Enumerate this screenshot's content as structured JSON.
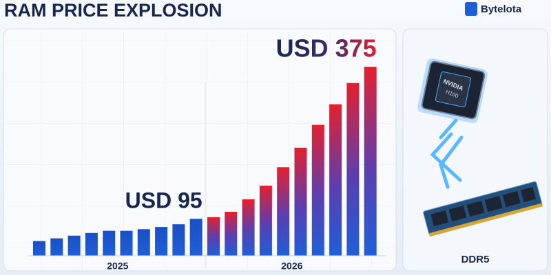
{
  "brand": "Bytelota",
  "chart_data": {
    "type": "bar",
    "title": "RAM PRICE EXPLOSION",
    "categories": [
      null,
      null,
      null,
      null,
      null,
      null,
      null,
      null,
      null,
      null,
      null,
      null,
      null,
      null,
      null,
      null,
      null,
      null,
      null,
      null
    ],
    "values": [
      54,
      59,
      64,
      69,
      73,
      73,
      76,
      80,
      85,
      95,
      98,
      108,
      131,
      156,
      190,
      226,
      268,
      306,
      345,
      375
    ],
    "x_groups": [
      {
        "label": "2025",
        "count": 10
      },
      {
        "label": "2026",
        "count": 10
      }
    ],
    "color": "#1f5fd6",
    "accent_color": "#e3202f",
    "ylim": [
      27,
      422
    ],
    "annotations": [
      {
        "text": "USD 95",
        "index": 9
      },
      {
        "text": "USD 375",
        "index": 19
      }
    ]
  },
  "illustration": {
    "chip_label": "NVIDIA",
    "chip_model": "H100",
    "memory_label": "DDR5"
  }
}
